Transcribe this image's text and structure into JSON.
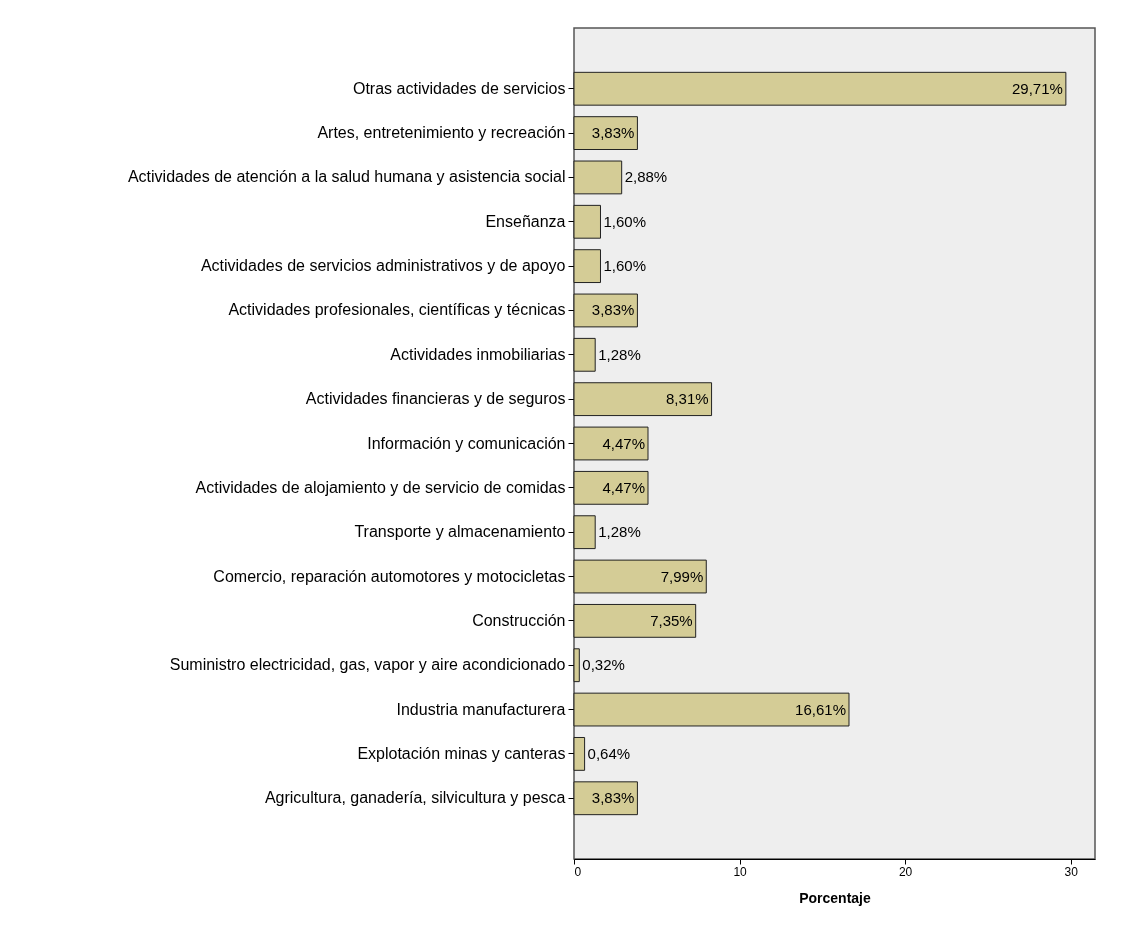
{
  "chart_data": {
    "type": "bar",
    "orientation": "horizontal",
    "xlabel": "Porcentaje",
    "categories": [
      "Otras actividades de servicios",
      "Artes, entretenimiento y recreación",
      "Actividades de atención a la salud humana y asistencia social",
      "Enseñanza",
      "Actividades de servicios administrativos y de apoyo",
      "Actividades profesionales, científicas y técnicas",
      "Actividades inmobiliarias",
      "Actividades financieras y de seguros",
      "Información y comunicación",
      "Actividades de alojamiento y de servicio de comidas",
      "Transporte y almacenamiento",
      "Comercio, reparación automotores y motocicletas",
      "Construcción",
      "Suministro electricidad, gas, vapor y aire acondicionado",
      "Industria manufacturera",
      "Explotación minas y canteras",
      "Agricultura, ganadería,  silvicultura y pesca"
    ],
    "values": [
      29.71,
      3.83,
      2.88,
      1.6,
      1.6,
      3.83,
      1.28,
      8.31,
      4.47,
      4.47,
      1.28,
      7.99,
      7.35,
      0.32,
      16.61,
      0.64,
      3.83
    ],
    "value_labels": [
      "29,71%",
      "3,83%",
      "2,88%",
      "1,60%",
      "1,60%",
      "3,83%",
      "1,28%",
      "8,31%",
      "4,47%",
      "4,47%",
      "1,28%",
      "7,99%",
      "7,35%",
      "0,32%",
      "16,61%",
      "0,64%",
      "3,83%"
    ],
    "color": "#d4cc96",
    "xlim": [
      0,
      31.47
    ],
    "xticks": [
      0,
      10,
      20,
      30
    ],
    "grid": false
  }
}
